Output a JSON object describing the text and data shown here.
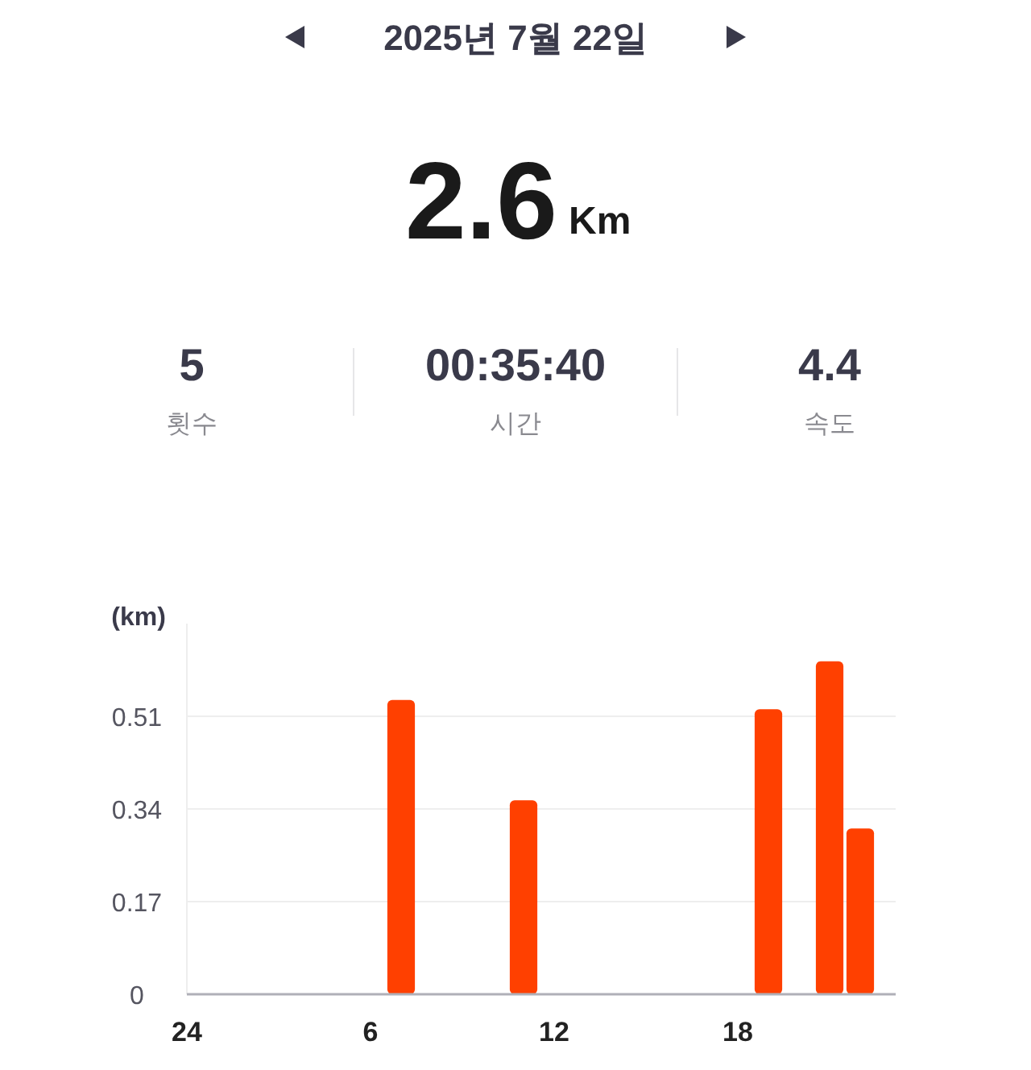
{
  "chart_data": {
    "type": "bar",
    "title": "2025년 7월 22일",
    "ylabel": "(km)",
    "annotations": [
      "2.6",
      "Km",
      "5",
      "횟수",
      "00:35:40",
      "시간",
      "4.4",
      "속도"
    ],
    "categories": [
      "24",
      null,
      null,
      null,
      null,
      null,
      "6",
      null,
      null,
      null,
      null,
      null,
      "12",
      null,
      null,
      null,
      null,
      null,
      "18",
      null,
      null,
      null,
      null,
      null
    ],
    "values": [
      null,
      null,
      null,
      null,
      null,
      null,
      null,
      0.54,
      null,
      null,
      null,
      0.356,
      null,
      null,
      null,
      null,
      null,
      null,
      null,
      0.523,
      null,
      0.611,
      0.304,
      null
    ],
    "color": "#ff4000",
    "ylim": [
      0,
      0.68
    ],
    "yticks": [
      0,
      0.17,
      0.34,
      0.51
    ],
    "grid": "y"
  }
}
